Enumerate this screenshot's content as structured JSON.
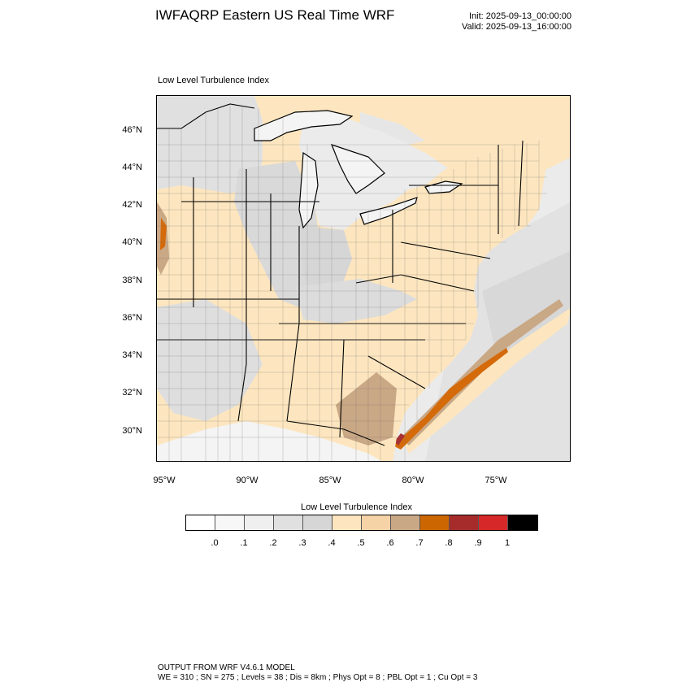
{
  "header": {
    "title": "IWFAQRP Eastern US Real Time WRF",
    "init": "Init: 2025-09-13_00:00:00",
    "valid": "Valid: 2025-09-13_16:00:00"
  },
  "map": {
    "subtitle": "Low Level Turbulence Index",
    "lat_labels": [
      "46°N",
      "44°N",
      "42°N",
      "40°N",
      "38°N",
      "36°N",
      "34°N",
      "32°N",
      "30°N"
    ],
    "lon_labels": [
      "95°W",
      "90°W",
      "85°W",
      "80°W",
      "75°W"
    ],
    "colors": {
      "land_base": "#fde6bf",
      "gray_high": "#d9d9d9",
      "gray_mid": "#e6e6e6",
      "gray_light": "#f2f2f2",
      "tan": "#c9a886",
      "orange": "#d46a0a",
      "dark_red": "#a83232",
      "water": "#f4f4f4",
      "border": "#000000"
    }
  },
  "legend": {
    "title": "Low Level Turbulence Index",
    "ticks": [
      ".0",
      ".1",
      ".2",
      ".3",
      ".4",
      ".5",
      ".6",
      ".7",
      ".8",
      ".9",
      "1"
    ],
    "colors": [
      "#ffffff",
      "#f7f7f7",
      "#efefef",
      "#e0e0e0",
      "#d6d6d6",
      "#fde6bf",
      "#f5d3a6",
      "#c9a886",
      "#cc6600",
      "#a62c2c",
      "#d62828",
      "#000000"
    ]
  },
  "footer": {
    "line1": "OUTPUT FROM WRF V4.6.1 MODEL",
    "line2": "WE = 310 ; SN = 275 ; Levels = 38 ; Dis = 8km ; Phys Opt = 8 ; PBL Opt = 1 ; Cu Opt = 3"
  }
}
